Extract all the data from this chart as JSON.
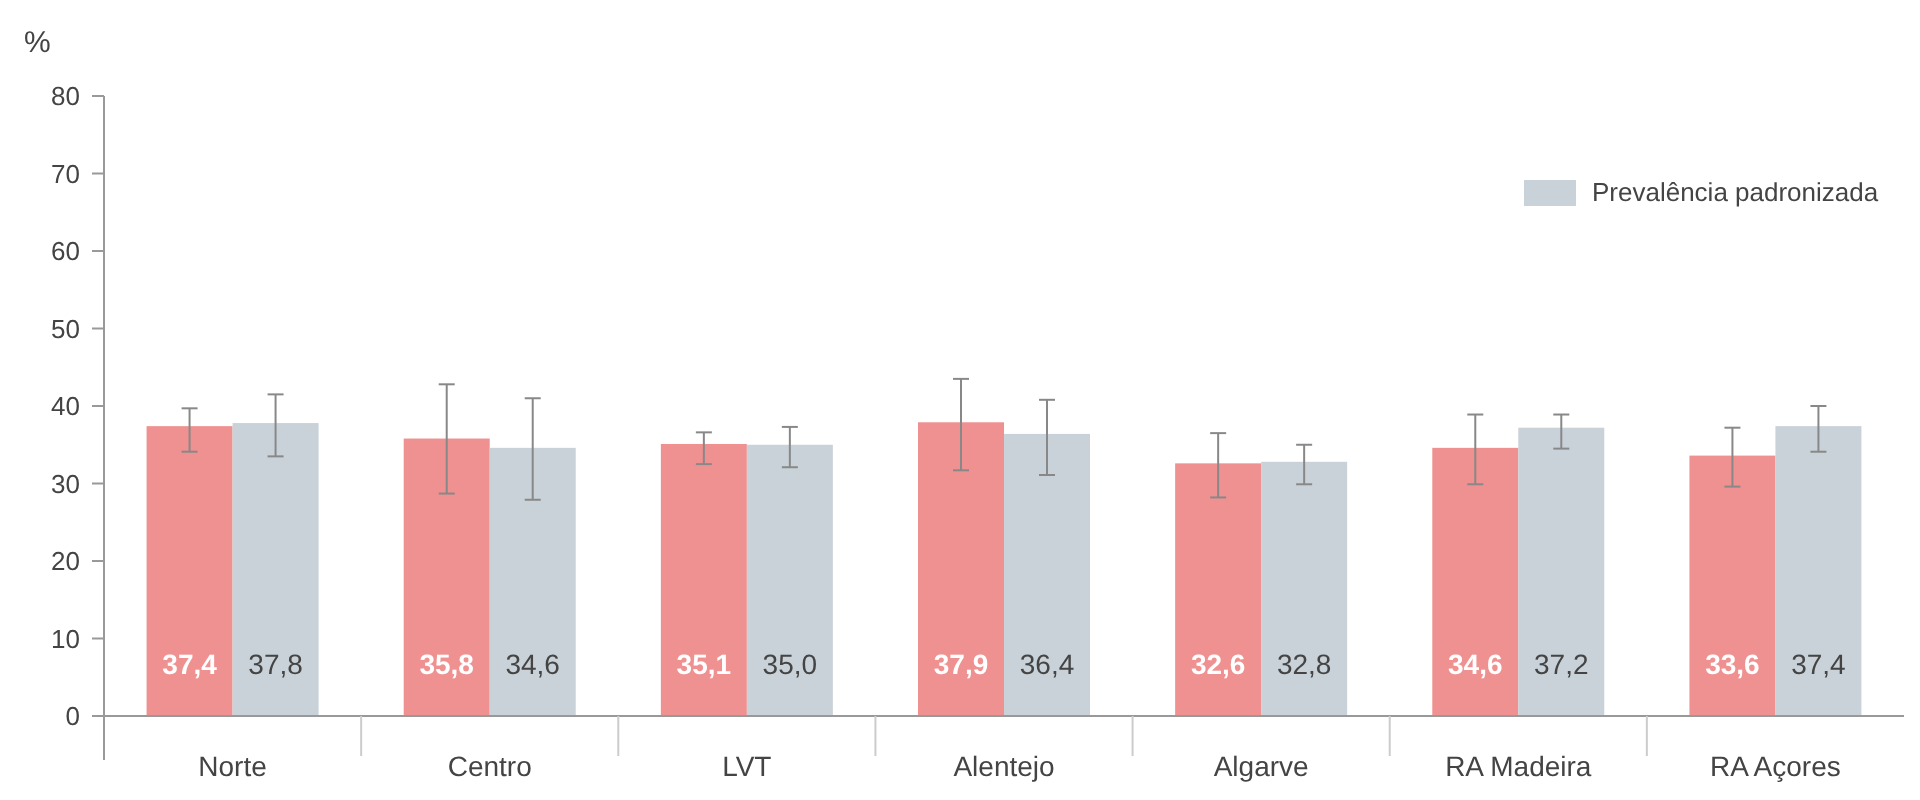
{
  "chart_data": {
    "type": "bar",
    "ylabel": "%",
    "categories": [
      "Norte",
      "Centro",
      "LVT",
      "Alentejo",
      "Algarve",
      "RA Madeira",
      "RA Açores"
    ],
    "series": [
      {
        "color": "#ef9190",
        "values": [
          37.4,
          35.8,
          35.1,
          37.9,
          32.6,
          34.6,
          33.6
        ],
        "value_labels": [
          "37,4",
          "35,8",
          "35,1",
          "37,9",
          "32,6",
          "34,6",
          "33,6"
        ],
        "errors": [
          [
            34.1,
            39.7
          ],
          [
            28.7,
            42.8
          ],
          [
            32.5,
            36.6
          ],
          [
            31.7,
            43.5
          ],
          [
            28.2,
            36.5
          ],
          [
            29.9,
            38.9
          ],
          [
            29.6,
            37.2
          ]
        ]
      },
      {
        "name": "Prevalência padronizada",
        "color": "#c9d2d8",
        "values": [
          37.8,
          34.6,
          35.0,
          36.4,
          32.8,
          37.2,
          37.4
        ],
        "value_labels": [
          "37,8",
          "34,6",
          "35,0",
          "36,4",
          "32,8",
          "37,2",
          "37,4"
        ],
        "errors": [
          [
            33.5,
            41.5
          ],
          [
            27.9,
            41.0
          ],
          [
            32.1,
            37.3
          ],
          [
            31.1,
            40.8
          ],
          [
            29.9,
            35.0
          ],
          [
            34.5,
            38.9
          ],
          [
            34.1,
            40.0
          ]
        ]
      }
    ],
    "ylim": [
      0,
      80
    ],
    "yticks": [
      0,
      10,
      20,
      30,
      40,
      50,
      60,
      70,
      80
    ],
    "grid": false,
    "legend": "top right"
  }
}
